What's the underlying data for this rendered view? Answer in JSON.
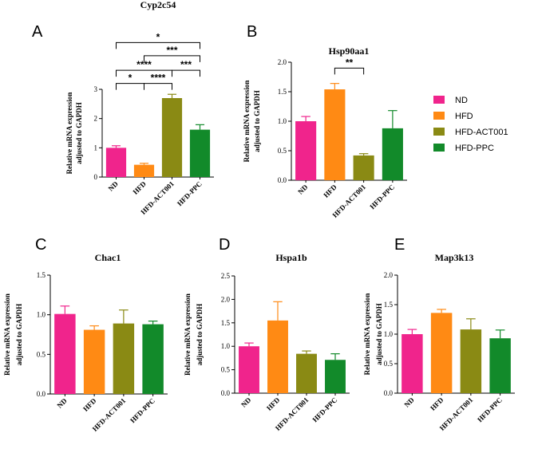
{
  "colors": {
    "ND": "#f0248c",
    "HFD": "#ff8a14",
    "HFD-ACT001": "#8a8a14",
    "HFD-PPC": "#128a2a"
  },
  "legend": {
    "items": [
      {
        "label": "ND",
        "color": "#f0248c"
      },
      {
        "label": "HFD",
        "color": "#ff8a14"
      },
      {
        "label": "HFD-ACT001",
        "color": "#8a8a14"
      },
      {
        "label": "HFD-PPC",
        "color": "#128a2a"
      }
    ]
  },
  "chart_data": [
    {
      "panel": "A",
      "type": "bar",
      "title": "Cyp2c54",
      "ylabel": [
        "Relative mRNA expression",
        "adjusted to GAPDH"
      ],
      "categories": [
        "ND",
        "HFD",
        "HFD-ACT001",
        "HFD-PPC"
      ],
      "values": [
        1.0,
        0.42,
        2.7,
        1.62
      ],
      "errors": [
        0.07,
        0.05,
        0.13,
        0.17
      ],
      "ylim": [
        0,
        3
      ],
      "yticks": [
        0,
        1,
        2,
        3
      ],
      "tick_labels": [
        "0",
        "1",
        "2",
        "3"
      ],
      "significance": [
        {
          "from": 0,
          "to": 1,
          "label": "*",
          "y": 3.2
        },
        {
          "from": 1,
          "to": 2,
          "label": "****",
          "y": 3.2
        },
        {
          "from": 2,
          "to": 3,
          "label": "***",
          "y": 3.65
        },
        {
          "from": 0,
          "to": 2,
          "label": "****",
          "y": 3.65
        },
        {
          "from": 1,
          "to": 3,
          "label": "***",
          "y": 4.15
        },
        {
          "from": 0,
          "to": 3,
          "label": "*",
          "y": 4.6
        }
      ]
    },
    {
      "panel": "B",
      "type": "bar",
      "title": "Hsp90aa1",
      "ylabel": [
        "Relative mRNA expression",
        "adjusted to GAPDH"
      ],
      "categories": [
        "ND",
        "HFD",
        "HFD-ACT001",
        "HFD-PPC"
      ],
      "values": [
        1.0,
        1.54,
        0.42,
        0.88
      ],
      "errors": [
        0.08,
        0.1,
        0.03,
        0.3
      ],
      "ylim": [
        0,
        2.0
      ],
      "yticks": [
        0,
        0.5,
        1.0,
        1.5,
        2.0
      ],
      "tick_labels": [
        "0.0",
        "0.5",
        "1.0",
        "1.5",
        "2.0"
      ],
      "significance": [
        {
          "from": 1,
          "to": 2,
          "label": "**",
          "y": 1.9
        }
      ]
    },
    {
      "panel": "C",
      "type": "bar",
      "title": "Chac1",
      "ylabel": [
        "Relative mRNA expression",
        "adjusted to GAPDH"
      ],
      "categories": [
        "ND",
        "HFD",
        "HFD-ACT001",
        "HFD-PPC"
      ],
      "values": [
        1.01,
        0.81,
        0.89,
        0.88
      ],
      "errors": [
        0.1,
        0.05,
        0.17,
        0.04
      ],
      "ylim": [
        0,
        1.5
      ],
      "yticks": [
        0,
        0.5,
        1.0,
        1.5
      ],
      "tick_labels": [
        "0.0",
        "0.5",
        "1.0",
        "1.5"
      ],
      "significance": []
    },
    {
      "panel": "D",
      "type": "bar",
      "title": "Hspa1b",
      "ylabel": [
        "Relative mRNA expression",
        "adjusted to GAPDH"
      ],
      "categories": [
        "ND",
        "HFD",
        "HFD-ACT001",
        "HFD-PPC"
      ],
      "values": [
        1.0,
        1.55,
        0.84,
        0.71
      ],
      "errors": [
        0.07,
        0.4,
        0.06,
        0.13
      ],
      "ylim": [
        0,
        2.5
      ],
      "yticks": [
        0,
        0.5,
        1.0,
        1.5,
        2.0,
        2.5
      ],
      "tick_labels": [
        "0.0",
        "0.5",
        "1.0",
        "1.5",
        "2.0",
        "2.5"
      ],
      "significance": []
    },
    {
      "panel": "E",
      "type": "bar",
      "title": "Map3k13",
      "ylabel": [
        "Relative mRNA expression",
        "adjusted to GAPDH"
      ],
      "categories": [
        "ND",
        "HFD",
        "HFD-ACT001",
        "HFD-PPC"
      ],
      "values": [
        1.0,
        1.36,
        1.08,
        0.93
      ],
      "errors": [
        0.08,
        0.06,
        0.18,
        0.14
      ],
      "ylim": [
        0,
        2.0
      ],
      "yticks": [
        0,
        0.5,
        1.0,
        1.5,
        2.0
      ],
      "tick_labels": [
        "0.0",
        "0.5",
        "1.0",
        "1.5",
        "2.0"
      ],
      "significance": []
    }
  ]
}
